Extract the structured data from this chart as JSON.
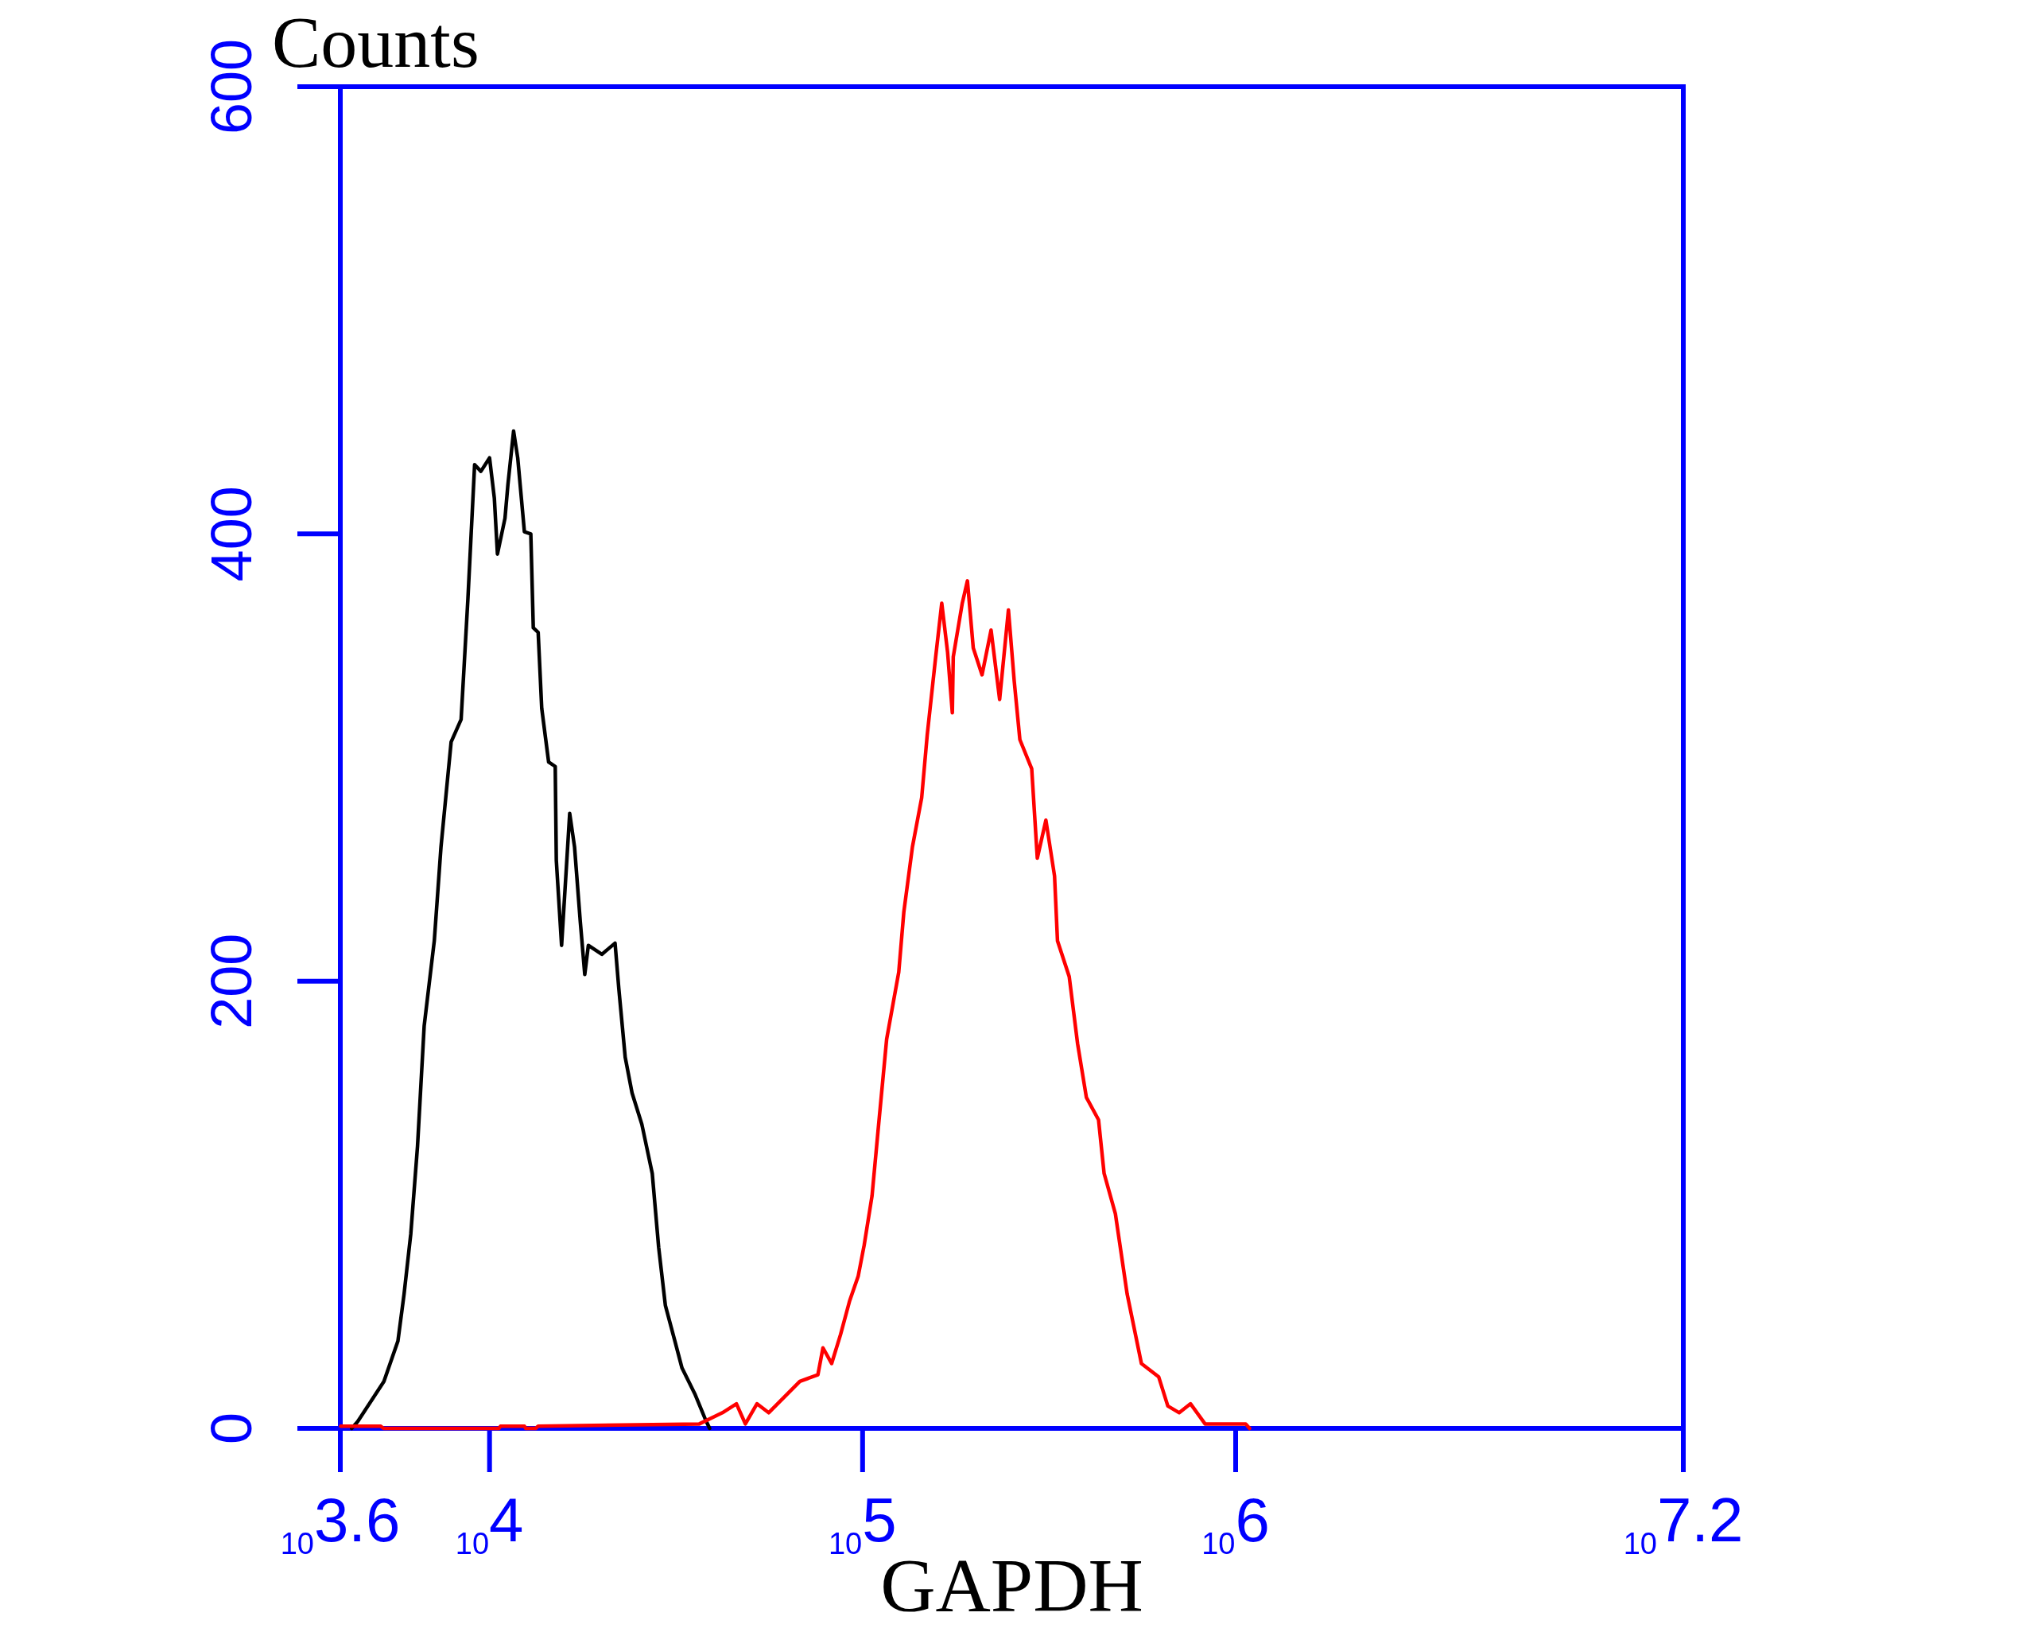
{
  "chart_data": {
    "type": "line",
    "xlabel": "GAPDH",
    "ylabel": "Counts",
    "log": "x",
    "xlim": [
      3981,
      15850000
    ],
    "xticks": [
      {
        "value": 3981,
        "label": "10$^{3.6}$"
      },
      {
        "value": 10000,
        "label": "10$^{4}$"
      },
      {
        "value": 100000,
        "label": "10$^{5}$"
      },
      {
        "value": 1000000,
        "label": "10$^{6}$"
      },
      {
        "value": 15850000,
        "label": "10$^{7.2}$"
      }
    ],
    "ylim": [
      0,
      600
    ],
    "yticks": [
      0,
      200,
      400,
      600
    ],
    "series": [
      {
        "color": "#000000",
        "x": [
          4270,
          4430,
          5210,
          5680,
          5900,
          6150,
          6410,
          6680,
          7110,
          7410,
          7890,
          8390,
          8750,
          9120,
          9480,
          10000,
          10300,
          10500,
          11000,
          11200,
          11600,
          11900,
          12400,
          12900,
          13100,
          13500,
          13800,
          14400,
          15000,
          15100,
          15600,
          16400,
          16900,
          17500,
          18000,
          18400,
          20000,
          21700,
          22200,
          23100,
          24100,
          25600,
          27300,
          28400,
          29600,
          31400,
          32800,
          35600,
          37900,
          38900
        ],
        "values": [
          0,
          3,
          21,
          39,
          60,
          87,
          126,
          180,
          218,
          260,
          307,
          317,
          371,
          431,
          428,
          434,
          416,
          391,
          407,
          422,
          446,
          434,
          401,
          400,
          358,
          356,
          322,
          298,
          296,
          254,
          216,
          275,
          260,
          227,
          203,
          216,
          212,
          217,
          197,
          166,
          150,
          136,
          114,
          81,
          55,
          39,
          27,
          15,
          4,
          0
        ]
      },
      {
        "color": "#ff0000",
        "x": [
          3990,
          5100,
          5200,
          10600,
          10700,
          12400,
          12500,
          13300,
          13500,
          36500,
          42100,
          45900,
          48500,
          52100,
          56000,
          67900,
          75900,
          78300,
          82600,
          87300,
          92300,
          97300,
          101000,
          106000,
          110000,
          116000,
          125000,
          129000,
          136000,
          144000,
          149000,
          157000,
          163000,
          169000,
          174000,
          175000,
          185000,
          191000,
          198000,
          209000,
          221000,
          233000,
          246000,
          255000,
          264000,
          284000,
          294000,
          310000,
          327000,
          333000,
          358000,
          377000,
          398000,
          429000,
          444000,
          476000,
          512000,
          559000,
          622000,
          658000,
          706000,
          757000,
          828000,
          1064000,
          1090000
        ],
        "values": [
          1,
          1,
          0,
          0,
          1,
          1,
          0,
          0,
          1,
          2,
          7,
          11,
          2,
          11,
          7,
          21,
          24,
          36,
          29,
          42,
          57,
          68,
          82,
          104,
          133,
          174,
          204,
          231,
          260,
          282,
          310,
          345,
          369,
          347,
          320,
          345,
          369,
          379,
          349,
          337,
          357,
          326,
          366,
          334,
          308,
          295,
          255,
          272,
          247,
          218,
          202,
          172,
          148,
          138,
          114,
          96,
          60,
          29,
          23,
          10,
          7,
          11,
          2,
          2,
          0
        ]
      }
    ]
  }
}
